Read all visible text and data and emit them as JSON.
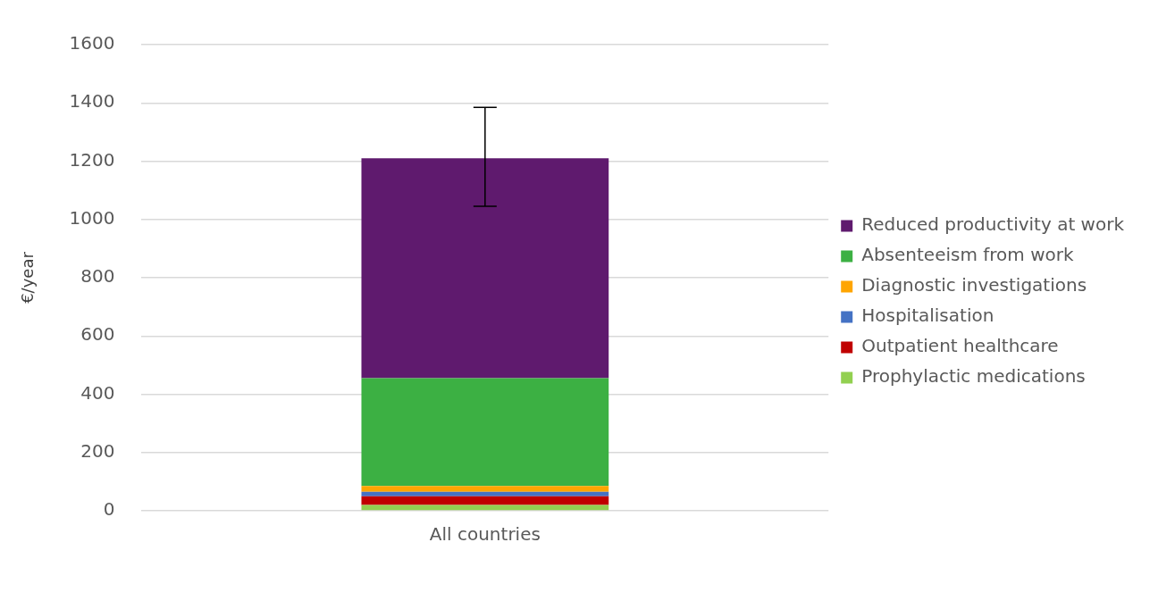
{
  "chart_data": {
    "type": "bar",
    "stacked": true,
    "ylabel": "€/year",
    "categories": [
      "All countries"
    ],
    "series": [
      {
        "name": "Prophylactic medications",
        "color": "#92d050",
        "values": [
          20
        ]
      },
      {
        "name": "Outpatient healthcare",
        "color": "#c00000",
        "values": [
          30
        ]
      },
      {
        "name": "Hospitalisation",
        "color": "#4472c4",
        "values": [
          15
        ]
      },
      {
        "name": "Diagnostic investigations",
        "color": "#ffa500",
        "values": [
          20
        ]
      },
      {
        "name": "Absenteeism from work",
        "color": "#3cb043",
        "values": [
          370
        ]
      },
      {
        "name": "Reduced productivity at work",
        "color": "#5f1a6e",
        "values": [
          755
        ],
        "errors": [
          [
            1045,
            1385
          ]
        ]
      }
    ],
    "ylim": [
      0,
      1600
    ],
    "yticks": [
      0,
      200,
      400,
      600,
      800,
      1000,
      1200,
      1400,
      1600
    ],
    "grid": "y",
    "legend": "right"
  }
}
